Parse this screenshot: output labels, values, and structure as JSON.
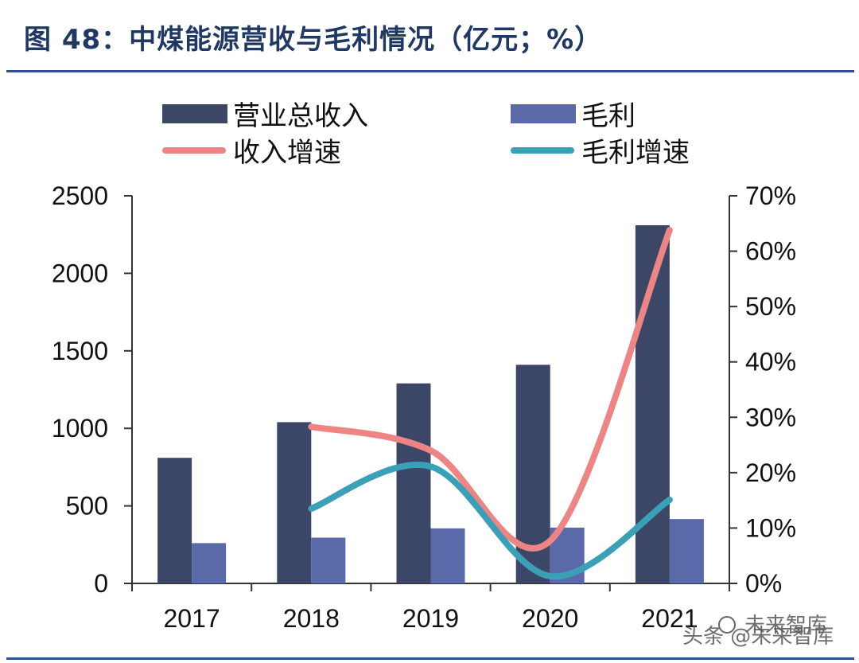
{
  "title": "图 48：中煤能源营收与毛利情况（亿元；%）",
  "watermark": {
    "line1": "未来智库",
    "line2": "头条 @未来智库"
  },
  "colors": {
    "revenue_bar": "#3c4666",
    "profit_bar": "#5a6aa8",
    "revenue_growth_line": "#ee8585",
    "profit_growth_line": "#3aa0b8",
    "title": "#1f3864",
    "rule": "#2f4f8f"
  },
  "chart_data": {
    "type": "bar",
    "categories": [
      "2017",
      "2018",
      "2019",
      "2020",
      "2021"
    ],
    "series": [
      {
        "name": "营业总收入",
        "kind": "bar",
        "axis": "left",
        "values": [
          810,
          1040,
          1290,
          1410,
          2310
        ]
      },
      {
        "name": "毛利",
        "kind": "bar",
        "axis": "left",
        "values": [
          260,
          295,
          355,
          360,
          415
        ]
      },
      {
        "name": "收入增速",
        "kind": "line",
        "axis": "right",
        "values": [
          null,
          28.3,
          24.0,
          7.7,
          63.8
        ]
      },
      {
        "name": "毛利增速",
        "kind": "line",
        "axis": "right",
        "values": [
          null,
          13.5,
          21.1,
          1.3,
          15.1
        ]
      }
    ],
    "y_left": {
      "min": 0,
      "max": 2500,
      "ticks": [
        "0",
        "500",
        "1000",
        "1500",
        "2000",
        "2500"
      ]
    },
    "y_right": {
      "min": 0,
      "max": 70,
      "ticks": [
        "0%",
        "10%",
        "20%",
        "30%",
        "40%",
        "50%",
        "60%",
        "70%"
      ]
    },
    "legend": {
      "position": "top",
      "items": [
        "营业总收入",
        "毛利",
        "收入增速",
        "毛利增速"
      ]
    },
    "grid": false
  }
}
